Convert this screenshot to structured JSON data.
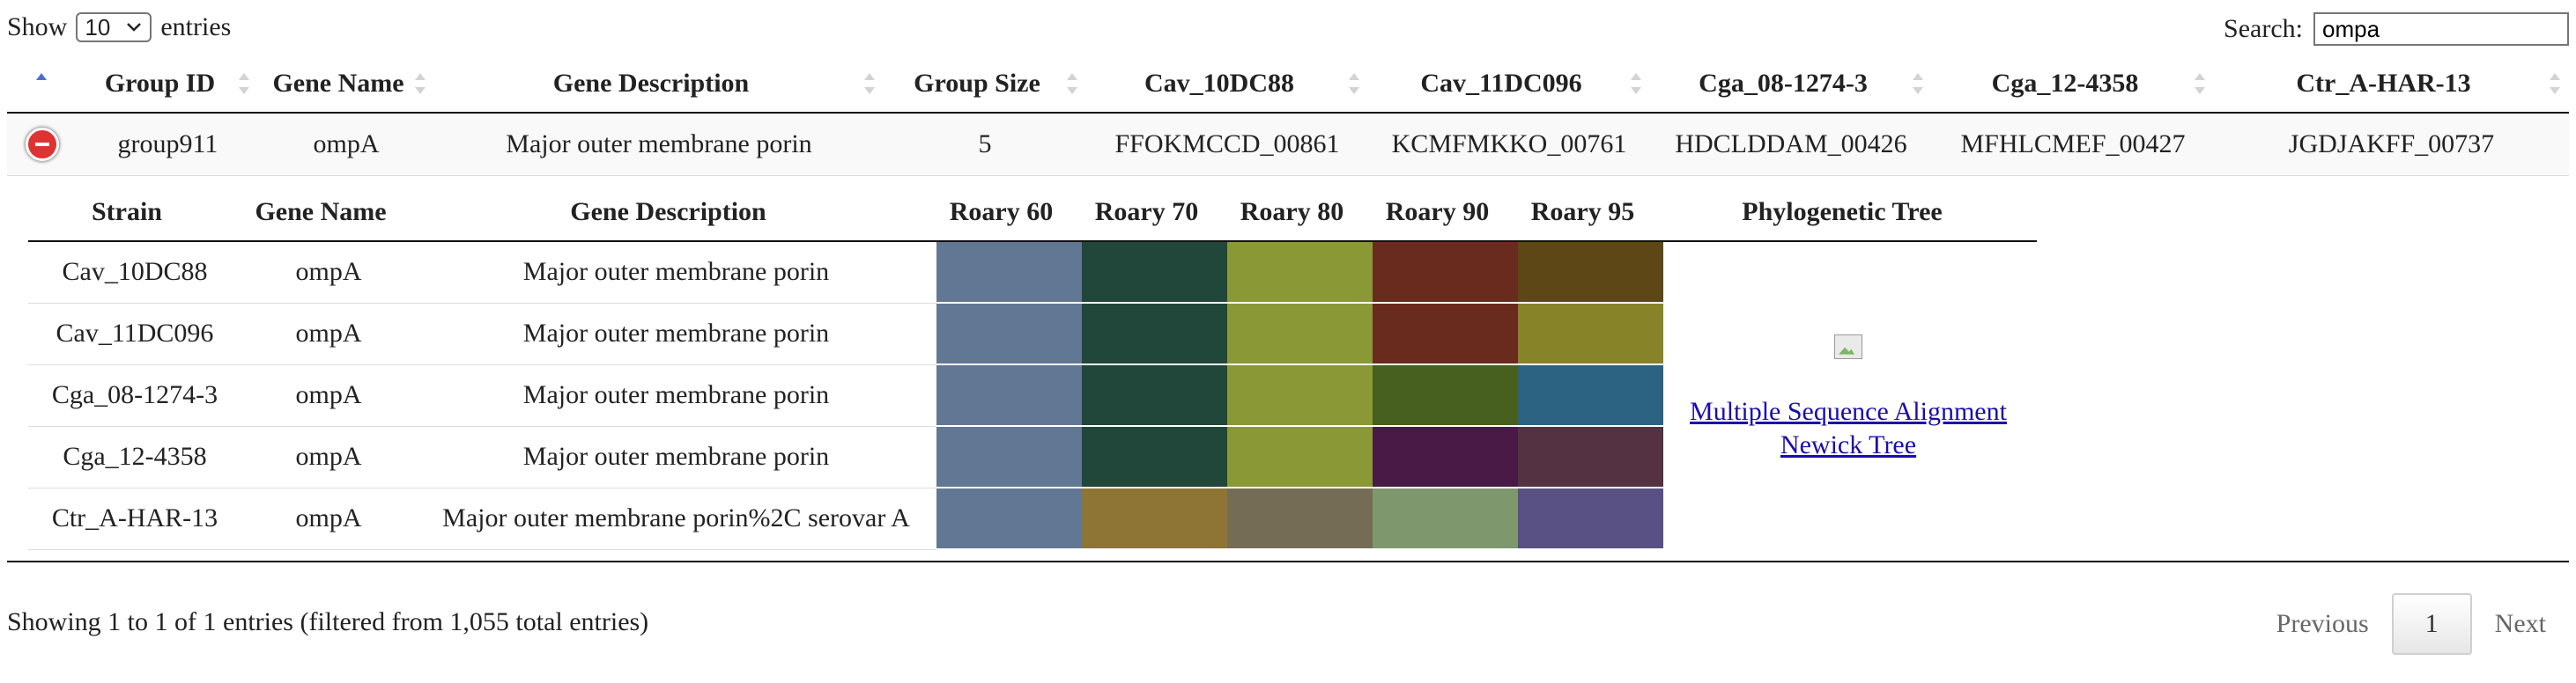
{
  "length": {
    "show_label": "Show",
    "selected": "10",
    "entries_label": "entries"
  },
  "search": {
    "label": "Search:",
    "value": "ompa"
  },
  "columns": [
    "Group ID",
    "Gene Name",
    "Gene Description",
    "Group Size",
    "Cav_10DC88",
    "Cav_11DC096",
    "Cga_08-1274-3",
    "Cga_12-4358",
    "Ctr_A-HAR-13"
  ],
  "group_row": {
    "group_id": "group911",
    "gene_name": "ompA",
    "gene_description": "Major outer membrane porin",
    "group_size": "5",
    "cav_10dc88": "FFOKMCCD_00861",
    "cav_11dc096": "KCMFMKKO_00761",
    "cga_08_1274_3": "HDCLDDAM_00426",
    "cga_12_4358": "MFHLCMEF_00427",
    "ctr_a_har_13": "JGDJAKFF_00737"
  },
  "detail": {
    "headers": [
      "Strain",
      "Gene Name",
      "Gene Description",
      "Roary 60",
      "Roary 70",
      "Roary 80",
      "Roary 90",
      "Roary 95",
      "Phylogenetic Tree"
    ],
    "rows": [
      {
        "strain": "Cav_10DC88",
        "gene": "ompA",
        "desc": "Major outer membrane porin",
        "colors": [
          "#627793",
          "#21463a",
          "#8a9836",
          "#6a2b1f",
          "#5d4716"
        ]
      },
      {
        "strain": "Cav_11DC096",
        "gene": "ompA",
        "desc": "Major outer membrane porin",
        "colors": [
          "#627793",
          "#21463a",
          "#8a9836",
          "#6a2b1f",
          "#868329"
        ]
      },
      {
        "strain": "Cga_08-1274-3",
        "gene": "ompA",
        "desc": "Major outer membrane porin",
        "colors": [
          "#627793",
          "#21463a",
          "#8a9836",
          "#48601f",
          "#2c6282"
        ]
      },
      {
        "strain": "Cga_12-4358",
        "gene": "ompA",
        "desc": "Major outer membrane porin",
        "colors": [
          "#627793",
          "#21463a",
          "#8a9836",
          "#4a1a46",
          "#553242"
        ]
      },
      {
        "strain": "Ctr_A-HAR-13",
        "gene": "ompA",
        "desc": "Major outer membrane porin%2C serovar A",
        "colors": [
          "#627793",
          "#8e7435",
          "#746c55",
          "#7f976d",
          "#595083"
        ]
      }
    ],
    "tree_links": {
      "msa": "Multiple Sequence Alignment",
      "newick": "Newick Tree"
    }
  },
  "footer": {
    "info": "Showing 1 to 1 of 1 entries (filtered from 1,055 total entries)",
    "previous": "Previous",
    "current_page": "1",
    "next": "Next"
  }
}
